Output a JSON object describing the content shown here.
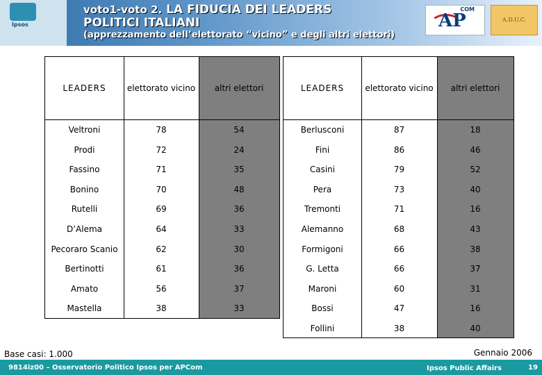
{
  "header": {
    "title_prefix": "voto1-voto 2.",
    "title_main_1": "LA FIDUCIA DEI LEADERS",
    "title_main_2": "POLITICI ITALIANI",
    "subtitle": "(apprezzamento dell’elettorato “vicino” e degli altri elettori)",
    "logo_text": "Ipsos",
    "apcom_com": "COM",
    "apcom_ap": "AP",
    "aduc_text": "A.D.U.C."
  },
  "columns": [
    "LEADERS",
    "elettorato vicino",
    "altri elettori"
  ],
  "left_table": [
    {
      "leader": "Veltroni",
      "vicino": "78",
      "altri": "54"
    },
    {
      "leader": "Prodi",
      "vicino": "72",
      "altri": "24"
    },
    {
      "leader": "Fassino",
      "vicino": "71",
      "altri": "35"
    },
    {
      "leader": "Bonino",
      "vicino": "70",
      "altri": "48"
    },
    {
      "leader": "Rutelli",
      "vicino": "69",
      "altri": "36"
    },
    {
      "leader": "D’Alema",
      "vicino": "64",
      "altri": "33"
    },
    {
      "leader": "Pecoraro Scanio",
      "vicino": "62",
      "altri": "30"
    },
    {
      "leader": "Bertinotti",
      "vicino": "61",
      "altri": "36"
    },
    {
      "leader": "Amato",
      "vicino": "56",
      "altri": "37"
    },
    {
      "leader": "Mastella",
      "vicino": "38",
      "altri": "33"
    }
  ],
  "right_table": [
    {
      "leader": "Berlusconi",
      "vicino": "87",
      "altri": "18"
    },
    {
      "leader": "Fini",
      "vicino": "86",
      "altri": "46"
    },
    {
      "leader": "Casini",
      "vicino": "79",
      "altri": "52"
    },
    {
      "leader": "Pera",
      "vicino": "73",
      "altri": "40"
    },
    {
      "leader": "Tremonti",
      "vicino": "71",
      "altri": "16"
    },
    {
      "leader": "Alemanno",
      "vicino": "68",
      "altri": "43"
    },
    {
      "leader": "Formigoni",
      "vicino": "66",
      "altri": "38"
    },
    {
      "leader": "G. Letta",
      "vicino": "66",
      "altri": "37"
    },
    {
      "leader": "Maroni",
      "vicino": "60",
      "altri": "31"
    },
    {
      "leader": "Bossi",
      "vicino": "47",
      "altri": "16"
    },
    {
      "leader": "Follini",
      "vicino": "38",
      "altri": "40"
    }
  ],
  "footer": {
    "base": "Base casi: 1.000",
    "date": "Gennaio 2006",
    "left": "9814iz00 – Osservatorio Politico Ipsos per APCom",
    "right": "Ipsos Public Affairs",
    "page": "19"
  },
  "colors": {
    "gray_column": "#7f7f7f",
    "footer_bar": "#1a9aa0"
  }
}
